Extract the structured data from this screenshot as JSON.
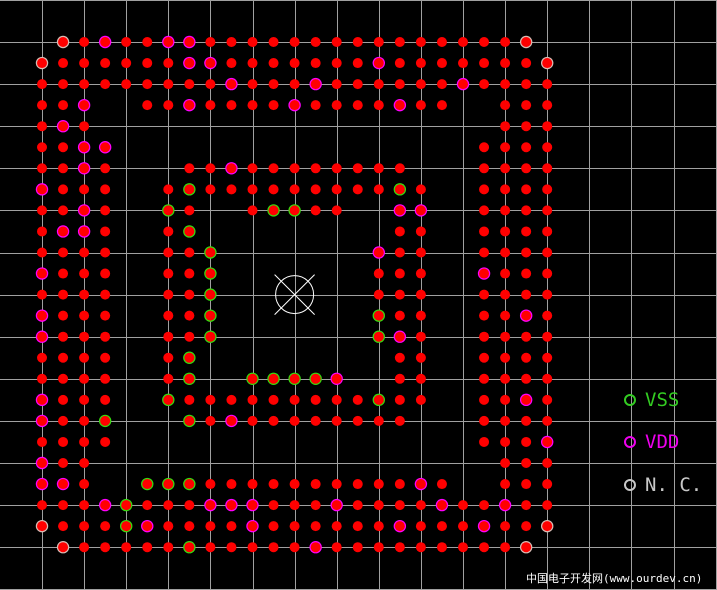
{
  "colors": {
    "background": "#000000",
    "grid": "#a0a0a0",
    "pin": "#ff0000",
    "vss": "#33dd11",
    "vdd": "#ff00ff",
    "nc": "#d8bcb4",
    "marker": "#ffffff"
  },
  "pin_key": {
    "r": "signal",
    "g": "VSS",
    "v": "VDD",
    "n": "N.C.",
    ".": "empty"
  },
  "pin_rows": [
    ".nrvrrvvrrrrrrrrrrrrrrrn.",
    "nrrrrrrvvrrrrrrrvrrrrrrrn",
    "rrrrrrrrrvrrrvrrrrrrvrrrr",
    "rrv..rrvrrrrvrrrrvrr..rrr",
    "rvr...................rrr",
    "rrvv.................rrrr",
    "rrvr...rrvrrrrrrrr...rrrr",
    "vrrr..rgrrrrrrrrrgr..rrrr",
    "rrvr..gr..rggrr..vv..rrrr",
    "rvvr..rg.........rr..rrrr",
    "rrrr..rrg.......vrr..rrrr",
    "vrrr..rrg.......rrr..vrrr",
    "rrrr..rrg.......rrr..rrrr",
    "vrrr..rrg.......grr..rrvr",
    "vrrr..rrg.......gvr..rrrr",
    "rrrr..rg.........rr..rrrr",
    "rrrr..rg..ggggv..rr..rrrr",
    "vrrr..grrrrrrrrrgrr..rrvr",
    "vrrg...grvrrrrrrrr...rrrr",
    "rrrr.................rrrv",
    "vrr...................rrr",
    "vvr..gggrrrrrrrrrrvr..rrr",
    "rrrvgrrrvvvrrrvrrrrvrrvrr",
    "nrrrgvrrrrvrrrrrrvrrrvrrn",
    ".nrrrrrgrrrrrvrrrrrrrrrn."
  ],
  "legend": [
    {
      "label": "VSS",
      "color": "#33cc22"
    },
    {
      "label": "VDD",
      "color": "#ee00ee"
    },
    {
      "label": "N. C.",
      "color": "#c8c8c8"
    }
  ],
  "footer": "中国电子开发网(www.ourdev.cn)"
}
